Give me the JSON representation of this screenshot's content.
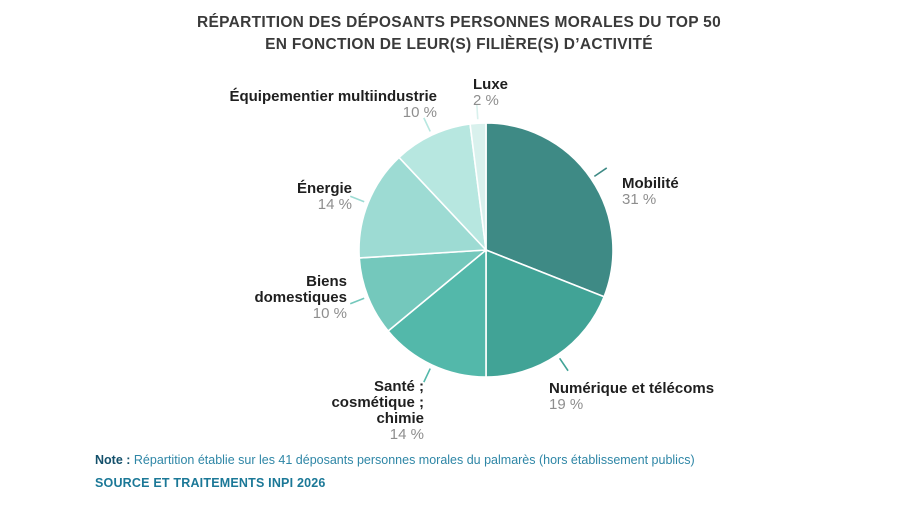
{
  "title": {
    "line1": "RÉPARTITION DES DÉPOSANTS PERSONNES MORALES DU TOP 50",
    "line2": "EN FONCTION DE LEUR(S) FILIÈRE(S) D’ACTIVITÉ"
  },
  "chart_data": {
    "type": "pie",
    "title": "Répartition des déposants personnes morales du top 50 en fonction de leur(s) filière(s) d’activité",
    "unit": "%",
    "start_angle_deg": 0,
    "direction": "clockwise",
    "legend_position": "labels-around-pie",
    "slices": [
      {
        "label": "Mobilité",
        "display": "Mobilité",
        "value": 31,
        "pct_label": "31 %",
        "color": "#3E8A85"
      },
      {
        "label": "Numérique et télécoms",
        "display": "Numérique et télécoms",
        "value": 19,
        "pct_label": "19 %",
        "color": "#41A396"
      },
      {
        "label": "Santé ; cosmétique ; chimie",
        "display": "Santé ;\ncosmétique ;\nchimie",
        "value": 14,
        "pct_label": "14 %",
        "color": "#53B8AA"
      },
      {
        "label": "Biens domestiques",
        "display": "Biens\ndomestiques",
        "value": 10,
        "pct_label": "10 %",
        "color": "#74C8BC"
      },
      {
        "label": "Énergie",
        "display": "Énergie",
        "value": 14,
        "pct_label": "14 %",
        "color": "#9DDBD3"
      },
      {
        "label": "Équipementier multiindustrie",
        "display": "Équipementier multiindustrie",
        "value": 10,
        "pct_label": "10 %",
        "color": "#B7E7E0"
      },
      {
        "label": "Luxe",
        "display": "Luxe",
        "value": 2,
        "pct_label": "2 %",
        "color": "#D9F1ED"
      }
    ]
  },
  "note": {
    "prefix": "Note :",
    "text": " Répartition établie sur les 41 déposants personnes morales du palmarès (hors établissement publics)"
  },
  "source": "SOURCE ET TRAITEMENTS INPI 2026",
  "palette": {
    "title_text": "#3A3A3A",
    "label_name_text": "#1F1F1F",
    "label_pct_text": "#8E8E8E",
    "note_prefix_text": "#14506B",
    "note_text": "#2E86A6",
    "source_text": "#1B7897",
    "slice_stroke": "#FFFFFF",
    "background": "#FFFFFF"
  }
}
